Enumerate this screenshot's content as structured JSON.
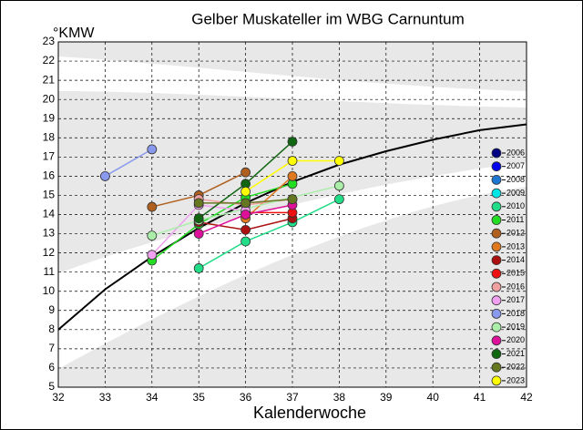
{
  "chart_data": {
    "type": "line",
    "title": "Gelber Muskateller im WBG Carnuntum",
    "y_label": "°KMW",
    "x_label": "Kalenderwoche",
    "xlim": [
      32,
      42
    ],
    "xticks": [
      32,
      33,
      34,
      35,
      36,
      37,
      38,
      39,
      40,
      41,
      42
    ],
    "ylim": [
      5,
      23
    ],
    "yticks": [
      5,
      6,
      7,
      8,
      9,
      10,
      11,
      12,
      13,
      14,
      15,
      16,
      17,
      18,
      19,
      20,
      21,
      22,
      23
    ],
    "grid": true,
    "curve": {
      "color": "#000000",
      "x": [
        32,
        33,
        34,
        35,
        36,
        37,
        38,
        39,
        40,
        41,
        42
      ],
      "values": [
        8.0,
        10.1,
        11.8,
        13.3,
        14.6,
        15.7,
        16.6,
        17.3,
        17.9,
        18.4,
        18.7
      ]
    },
    "series": [
      {
        "name": "2006",
        "color": "#000080",
        "x": [],
        "values": []
      },
      {
        "name": "2007",
        "color": "#0000ee",
        "x": [],
        "values": []
      },
      {
        "name": "2008",
        "color": "#1e78d2",
        "x": [],
        "values": []
      },
      {
        "name": "2009",
        "color": "#00e5e5",
        "x": [],
        "values": []
      },
      {
        "name": "2010",
        "color": "#22dd88",
        "x": [
          35,
          36,
          37,
          38
        ],
        "values": [
          11.2,
          12.6,
          13.6,
          14.8
        ]
      },
      {
        "name": "2011",
        "color": "#22dd22",
        "x": [
          34,
          35,
          36,
          37
        ],
        "values": [
          11.6,
          13.5,
          14.9,
          15.6
        ]
      },
      {
        "name": "2012",
        "color": "#b0601e",
        "x": [
          34,
          35,
          36
        ],
        "values": [
          14.4,
          15.0,
          16.2
        ]
      },
      {
        "name": "2013",
        "color": "#e07820",
        "x": [
          36,
          37
        ],
        "values": [
          13.8,
          16.0
        ]
      },
      {
        "name": "2014",
        "color": "#aa1010",
        "x": [
          35,
          36,
          37
        ],
        "values": [
          13.6,
          13.2,
          13.8
        ]
      },
      {
        "name": "2015",
        "color": "#ee1010",
        "x": [
          36,
          37
        ],
        "values": [
          14.1,
          14.1
        ]
      },
      {
        "name": "2016",
        "color": "#f0a0a0",
        "x": [
          35,
          36,
          37
        ],
        "values": [
          14.8,
          14.5,
          14.8
        ]
      },
      {
        "name": "2017",
        "color": "#f0a0f0",
        "x": [
          34,
          35,
          36
        ],
        "values": [
          11.9,
          14.5,
          14.2
        ]
      },
      {
        "name": "2018",
        "color": "#8899ee",
        "x": [
          33,
          34
        ],
        "values": [
          16.0,
          17.4
        ]
      },
      {
        "name": "2019",
        "color": "#aaeeaa",
        "x": [
          34,
          35,
          38
        ],
        "values": [
          12.9,
          13.7,
          15.5
        ]
      },
      {
        "name": "2020",
        "color": "#dd1099",
        "x": [
          35,
          36,
          37
        ],
        "values": [
          13.0,
          14.0,
          14.5
        ]
      },
      {
        "name": "2021",
        "color": "#116611",
        "x": [
          35,
          36,
          37
        ],
        "values": [
          13.8,
          15.6,
          17.8
        ]
      },
      {
        "name": "2022",
        "color": "#667722",
        "x": [
          35,
          36,
          37
        ],
        "values": [
          14.6,
          14.6,
          14.8
        ]
      },
      {
        "name": "2023",
        "color": "#ffff00",
        "x": [
          36,
          37,
          38
        ],
        "values": [
          15.2,
          16.8,
          16.8
        ]
      }
    ]
  }
}
